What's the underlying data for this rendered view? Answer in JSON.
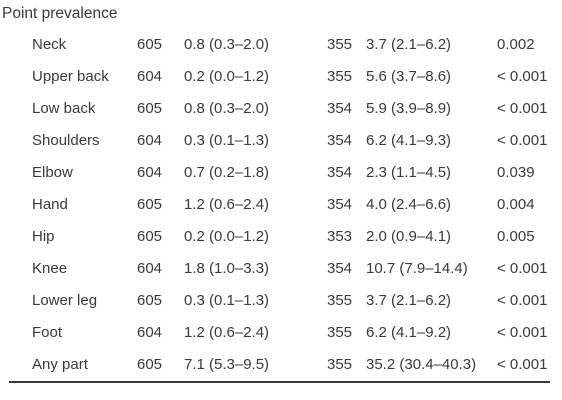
{
  "table": {
    "section_title": "Point prevalence",
    "rows": [
      {
        "site": "Neck",
        "n1": "605",
        "prev1": "0.8 (0.3–2.0)",
        "n2": "355",
        "prev2": "3.7 (2.1–6.2)",
        "p": "0.002"
      },
      {
        "site": "Upper back",
        "n1": "604",
        "prev1": "0.2 (0.0–1.2)",
        "n2": "355",
        "prev2": "5.6 (3.7–8.6)",
        "p": "< 0.001"
      },
      {
        "site": "Low back",
        "n1": "605",
        "prev1": "0.8 (0.3–2.0)",
        "n2": "354",
        "prev2": "5.9 (3.9–8.9)",
        "p": "< 0.001"
      },
      {
        "site": "Shoulders",
        "n1": "604",
        "prev1": "0.3 (0.1–1.3)",
        "n2": "354",
        "prev2": "6.2 (4.1–9.3)",
        "p": "< 0.001"
      },
      {
        "site": "Elbow",
        "n1": "604",
        "prev1": "0.7 (0.2–1.8)",
        "n2": "354",
        "prev2": "2.3 (1.1–4.5)",
        "p": "0.039"
      },
      {
        "site": "Hand",
        "n1": "605",
        "prev1": "1.2 (0.6–2.4)",
        "n2": "354",
        "prev2": "4.0 (2.4–6.6)",
        "p": "0.004"
      },
      {
        "site": "Hip",
        "n1": "605",
        "prev1": "0.2 (0.0–1.2)",
        "n2": "353",
        "prev2": "2.0 (0.9–4.1)",
        "p": "0.005"
      },
      {
        "site": "Knee",
        "n1": "604",
        "prev1": "1.8 (1.0–3.3)",
        "n2": "354",
        "prev2": "10.7 (7.9–14.4)",
        "p": "< 0.001"
      },
      {
        "site": "Lower leg",
        "n1": "605",
        "prev1": "0.3 (0.1–1.3)",
        "n2": "355",
        "prev2": "3.7 (2.1–6.2)",
        "p": "< 0.001"
      },
      {
        "site": "Foot",
        "n1": "604",
        "prev1": "1.2 (0.6–2.4)",
        "n2": "355",
        "prev2": "6.2 (4.1–9.2)",
        "p": "< 0.001"
      },
      {
        "site": "Any part",
        "n1": "605",
        "prev1": "7.1 (5.3–9.5)",
        "n2": "355",
        "prev2": "35.2 (30.4–40.3)",
        "p": "< 0.001"
      }
    ]
  }
}
